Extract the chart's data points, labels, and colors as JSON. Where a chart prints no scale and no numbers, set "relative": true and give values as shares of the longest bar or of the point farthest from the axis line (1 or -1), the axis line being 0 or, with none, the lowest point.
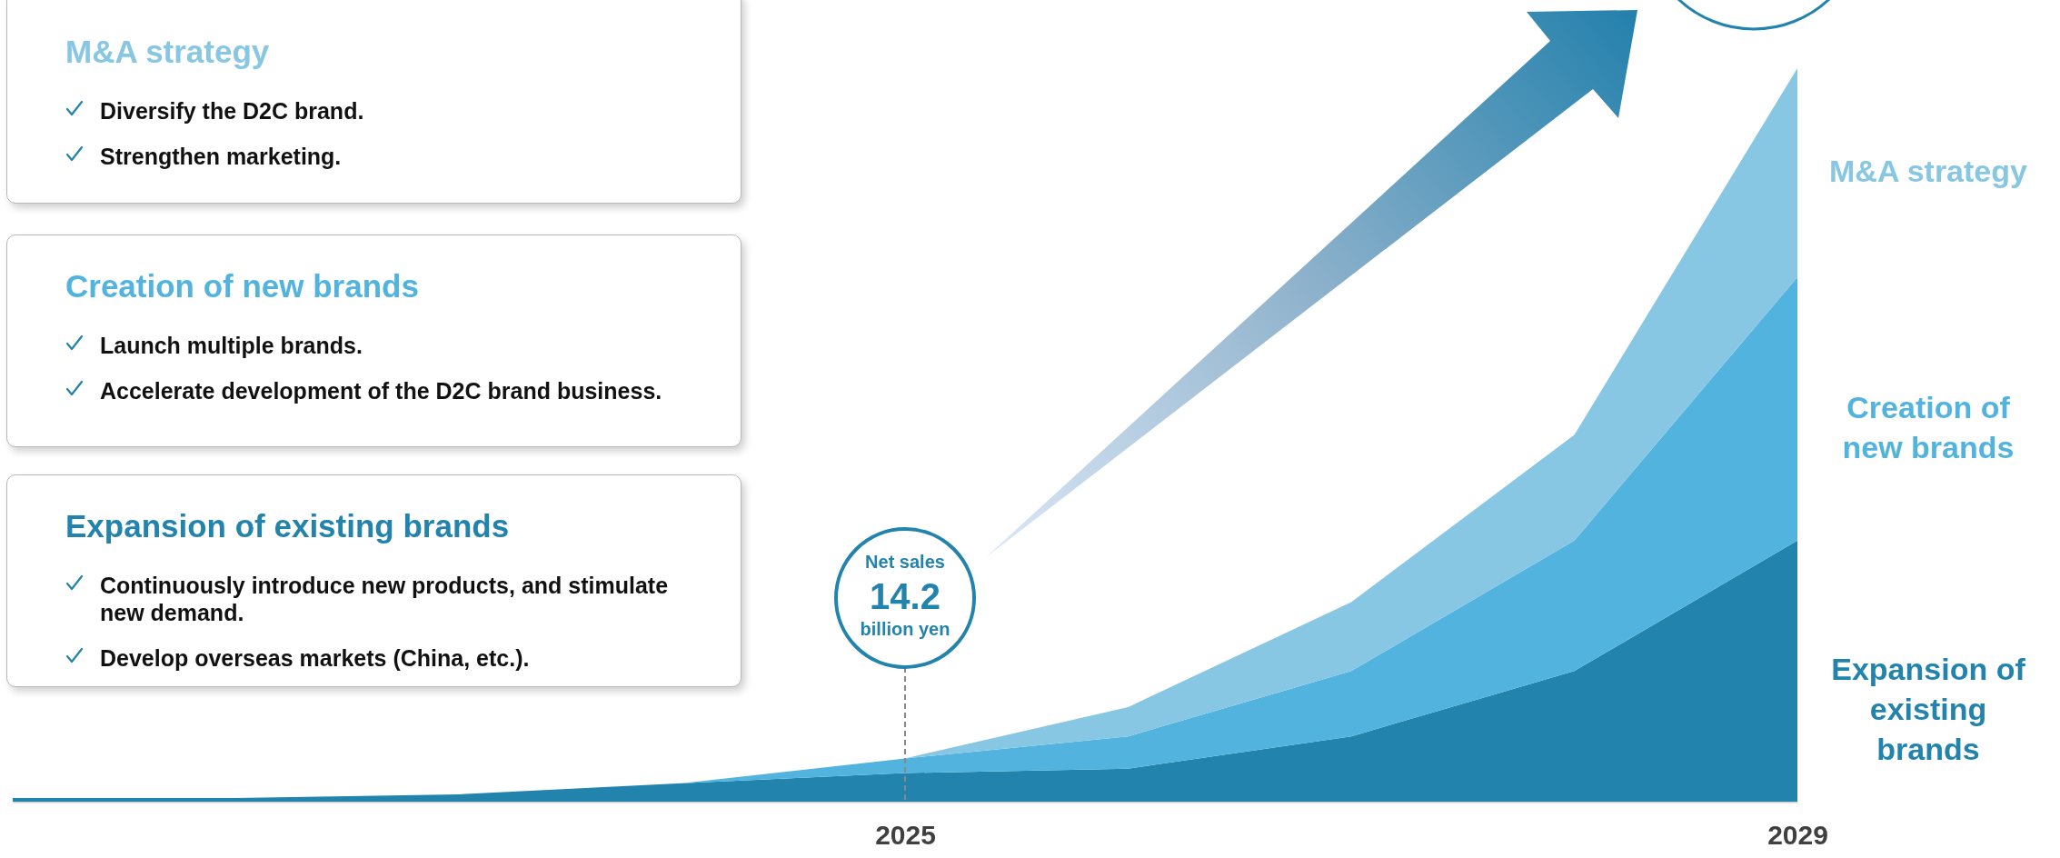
{
  "chart_data": {
    "type": "area",
    "stacked": true,
    "relative": true,
    "categories": [
      null,
      null,
      null,
      null,
      "2025",
      null,
      null,
      null,
      "2029"
    ],
    "grid": false,
    "series": [
      {
        "name": "Expansion of existing brands",
        "color": "#2283ac",
        "values": [
          0.005,
          0.005,
          0.01,
          0.025,
          0.039,
          0.045,
          0.089,
          0.178,
          0.356
        ]
      },
      {
        "name": "Creation of new brands",
        "color": "#52b4de",
        "values": [
          0,
          0,
          0,
          0,
          0.02,
          0.044,
          0.089,
          0.178,
          0.359
        ]
      },
      {
        "name": "M&A strategy",
        "color": "#87c7e3",
        "values": [
          0,
          0,
          0,
          0,
          0,
          0.04,
          0.094,
          0.144,
          0.285
        ]
      }
    ],
    "ref_lines": [
      {
        "axis": "x",
        "value": "2025",
        "label": "Net sales 14.2 billion yen",
        "color": "#888888",
        "line_style": "dashed"
      }
    ],
    "annotations": [
      "Continuously introduce new products, and stimulate new demand.",
      "Develop overseas markets (China, etc.).",
      "Launch multiple brands.",
      "Accelerate development of the D2C brand business.",
      "Diversify the D2C brand.",
      "Strengthen marketing."
    ]
  }
}
